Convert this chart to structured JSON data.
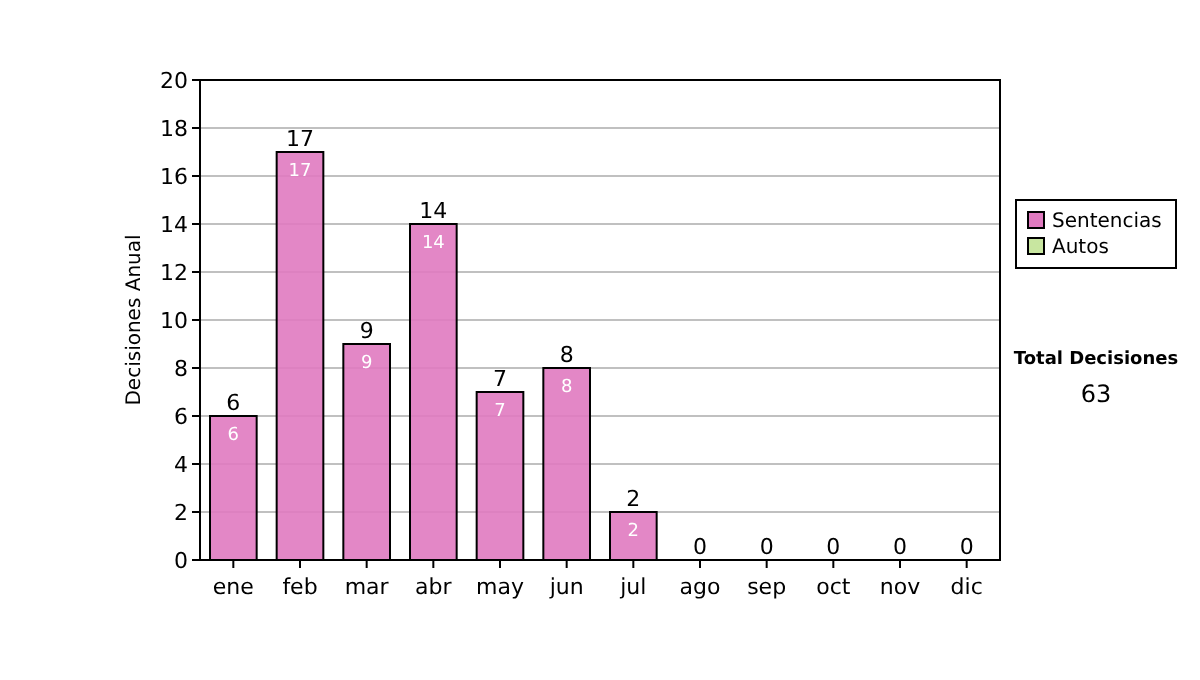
{
  "chart_data": {
    "type": "bar",
    "stacked": true,
    "ylabel": "Decisiones Anual",
    "categories": [
      "ene",
      "feb",
      "mar",
      "abr",
      "may",
      "jun",
      "jul",
      "ago",
      "sep",
      "oct",
      "nov",
      "dic"
    ],
    "series": [
      {
        "name": "Sentencias",
        "color": "#e07ac0",
        "values": [
          6,
          17,
          9,
          14,
          7,
          8,
          2,
          0,
          0,
          0,
          0,
          0
        ],
        "value_labels": [
          "6",
          "17",
          "9",
          "14",
          "7",
          "8",
          "2",
          null,
          null,
          null,
          null,
          null
        ]
      },
      {
        "name": "Autos",
        "color": "#c8e6a0",
        "values": [
          0,
          0,
          0,
          0,
          0,
          0,
          0,
          0,
          0,
          0,
          0,
          0
        ]
      }
    ],
    "totals": [
      "6",
      "17",
      "9",
      "14",
      "7",
      "8",
      "2",
      "0",
      "0",
      "0",
      "0",
      "0"
    ],
    "ylim": [
      0,
      20
    ],
    "yticks": [
      0,
      2,
      4,
      6,
      8,
      10,
      12,
      14,
      16,
      18,
      20
    ],
    "grid": "y",
    "legend": "right",
    "annotations": [
      "Total Decisiones",
      "63"
    ]
  }
}
